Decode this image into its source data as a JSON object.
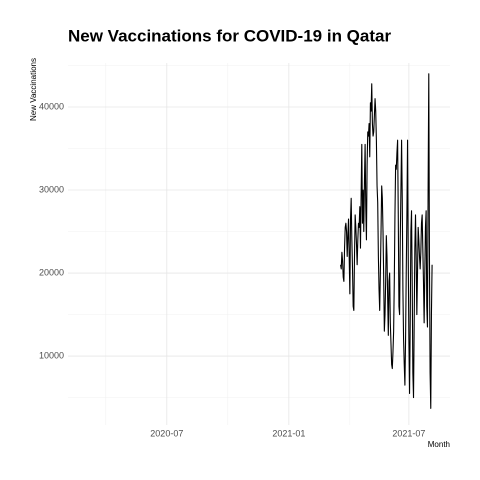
{
  "chart_data": {
    "type": "line",
    "title": "New Vaccinations for COVID-19 in Qatar",
    "x_label": "Month",
    "y_label": "New Vaccinations",
    "color": "#000000",
    "grid": true,
    "xlim": [
      "2020-02-03",
      "2021-09-01"
    ],
    "xticks": [
      {
        "value": "2020-07-01",
        "label": "2020-07"
      },
      {
        "value": "2021-01-01",
        "label": "2021-01"
      },
      {
        "value": "2021-07-01",
        "label": "2021-07"
      }
    ],
    "ylim": [
      1700,
      45300
    ],
    "yticks": [
      10000,
      20000,
      30000,
      40000
    ],
    "x": [
      "2021-03-20",
      "2021-03-21",
      "2021-03-22",
      "2021-03-23",
      "2021-03-24",
      "2021-03-25",
      "2021-03-26",
      "2021-03-27",
      "2021-03-28",
      "2021-03-29",
      "2021-03-30",
      "2021-03-31",
      "2021-04-01",
      "2021-04-02",
      "2021-04-03",
      "2021-04-04",
      "2021-04-05",
      "2021-04-06",
      "2021-04-07",
      "2021-04-08",
      "2021-04-09",
      "2021-04-10",
      "2021-04-11",
      "2021-04-12",
      "2021-04-13",
      "2021-04-14",
      "2021-04-15",
      "2021-04-16",
      "2021-04-17",
      "2021-04-18",
      "2021-04-19",
      "2021-04-20",
      "2021-04-21",
      "2021-04-22",
      "2021-04-23",
      "2021-04-24",
      "2021-04-25",
      "2021-04-26",
      "2021-04-27",
      "2021-04-28",
      "2021-04-29",
      "2021-04-30",
      "2021-05-01",
      "2021-05-02",
      "2021-05-03",
      "2021-05-04",
      "2021-05-05",
      "2021-05-06",
      "2021-05-07",
      "2021-05-08",
      "2021-05-09",
      "2021-05-10",
      "2021-05-11",
      "2021-05-12",
      "2021-05-13",
      "2021-05-14",
      "2021-05-15",
      "2021-05-16",
      "2021-05-17",
      "2021-05-18",
      "2021-05-19",
      "2021-05-20",
      "2021-05-21",
      "2021-05-22",
      "2021-05-23",
      "2021-05-24",
      "2021-05-25",
      "2021-05-26",
      "2021-05-27",
      "2021-05-28",
      "2021-05-29",
      "2021-05-30",
      "2021-05-31",
      "2021-06-01",
      "2021-06-02",
      "2021-06-03",
      "2021-06-04",
      "2021-06-05",
      "2021-06-06",
      "2021-06-07",
      "2021-06-08",
      "2021-06-09",
      "2021-06-10",
      "2021-06-11",
      "2021-06-12",
      "2021-06-13",
      "2021-06-14",
      "2021-06-15",
      "2021-06-16",
      "2021-06-17",
      "2021-06-18",
      "2021-06-19",
      "2021-06-20",
      "2021-06-21",
      "2021-06-22",
      "2021-06-23",
      "2021-06-24",
      "2021-06-25",
      "2021-06-26",
      "2021-06-27",
      "2021-06-28",
      "2021-06-29",
      "2021-06-30",
      "2021-07-01",
      "2021-07-02",
      "2021-07-03",
      "2021-07-04",
      "2021-07-05",
      "2021-07-06",
      "2021-07-07",
      "2021-07-08",
      "2021-07-09",
      "2021-07-10",
      "2021-07-11",
      "2021-07-12",
      "2021-07-13",
      "2021-07-14",
      "2021-07-15",
      "2021-07-16",
      "2021-07-17",
      "2021-07-18",
      "2021-07-19",
      "2021-07-20",
      "2021-07-21",
      "2021-07-22",
      "2021-07-23",
      "2021-07-24",
      "2021-07-25",
      "2021-07-26",
      "2021-07-27",
      "2021-07-28",
      "2021-07-29",
      "2021-07-30",
      "2021-07-31",
      "2021-08-01",
      "2021-08-02",
      "2021-08-03",
      "2021-08-04",
      "2021-08-05"
    ],
    "values": [
      21000,
      20500,
      22500,
      21500,
      19500,
      19000,
      23000,
      25500,
      26000,
      25000,
      22000,
      24500,
      26500,
      22000,
      17500,
      26500,
      29000,
      24000,
      20500,
      16000,
      15500,
      22000,
      27000,
      25500,
      23500,
      21000,
      24000,
      26000,
      25500,
      28000,
      23000,
      29500,
      35500,
      26000,
      30000,
      25000,
      31000,
      35500,
      28000,
      24000,
      33000,
      37000,
      36500,
      38000,
      34000,
      40500,
      39500,
      42800,
      38000,
      36500,
      37000,
      39000,
      41000,
      39500,
      36000,
      30500,
      28500,
      22000,
      18000,
      15500,
      20000,
      25000,
      30500,
      29000,
      25000,
      19500,
      13000,
      15000,
      19000,
      24500,
      22000,
      17000,
      12500,
      19000,
      20000,
      14000,
      11500,
      9000,
      8500,
      10500,
      13000,
      19000,
      27000,
      33000,
      32500,
      34500,
      36000,
      27000,
      16000,
      15000,
      24000,
      30000,
      36000,
      29000,
      18000,
      12000,
      9000,
      6500,
      12000,
      20000,
      27000,
      36000,
      22000,
      12000,
      5500,
      14000,
      25000,
      27500,
      19000,
      8000,
      5000,
      14000,
      23000,
      27000,
      22000,
      15000,
      20000,
      25500,
      24000,
      22000,
      20500,
      22500,
      26000,
      27000,
      23000,
      19000,
      14000,
      20000,
      25500,
      27500,
      16000,
      13500,
      30000,
      44000,
      22000,
      8000,
      3700,
      15000,
      21000
    ]
  }
}
